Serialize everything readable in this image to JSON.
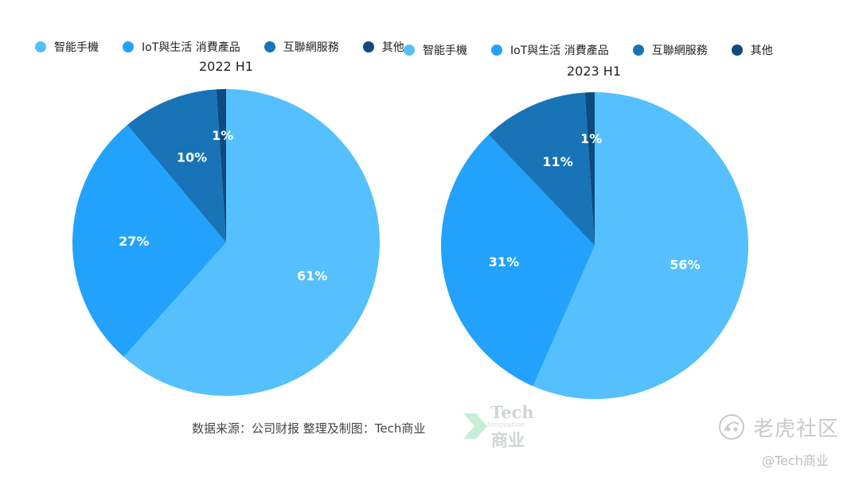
{
  "charts": [
    {
      "title": "2022 H1",
      "legend": [
        "智能手機",
        "IoT與生活 消費產品",
        "互聯網服務",
        "其他"
      ]
    },
    {
      "title": "2023 H1",
      "legend": [
        "智能手機",
        "IoT與生活 消費產品",
        "互聯網服務",
        "其他"
      ]
    }
  ],
  "colors": [
    "#55c0fd",
    "#22a2fc",
    "#1874b6",
    "#0d4a7e"
  ],
  "chart_data": [
    {
      "type": "pie",
      "title": "2022 H1",
      "categories": [
        "智能手機",
        "IoT與生活 消費產品",
        "互聯網服務",
        "其他"
      ],
      "values": [
        61,
        27,
        10,
        1
      ],
      "labels": [
        "61%",
        "27%",
        "10%",
        "1%"
      ],
      "legend_position": "top"
    },
    {
      "type": "pie",
      "title": "2023 H1",
      "categories": [
        "智能手機",
        "IoT與生活 消費產品",
        "互聯網服務",
        "其他"
      ],
      "values": [
        56,
        31,
        11,
        1
      ],
      "labels": [
        "56%",
        "31%",
        "11%",
        "1%"
      ],
      "legend_position": "top"
    }
  ],
  "source_text": "数据来源：公司财报 整理及制图：Tech商业",
  "logo": {
    "top": "Tech",
    "middle": "Innovation",
    "bottom": "商业"
  },
  "watermark": {
    "name": "老虎社区",
    "handle": "@Tech商业"
  }
}
